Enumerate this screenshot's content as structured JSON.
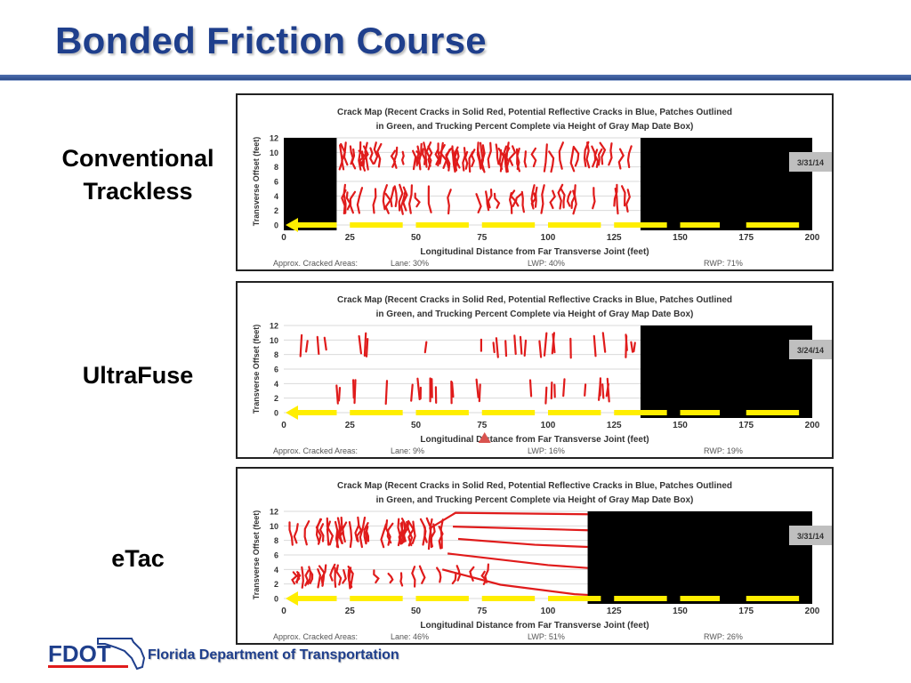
{
  "slide": {
    "title": "Bonded Friction Course",
    "footer_org": "Florida Department of Transportation",
    "logo_text": "FDOT"
  },
  "colors": {
    "title": "#1f3f8c",
    "crack_red": "#e01b1b",
    "black_mask": "#000000",
    "yellow_marker": "#ffee00",
    "date_box": "#bfbfbf"
  },
  "panels": [
    {
      "side_label": [
        "Conventional",
        "Trackless"
      ],
      "chart_title_line1": "Crack Map (Recent Cracks in Solid Red, Potential Reflective Cracks in Blue, Patches Outlined",
      "chart_title_line2": "in Green,  and Trucking Percent Complete via Height of Gray Map Date Box)",
      "date": "3/31/14",
      "approx_label": "Approx. Cracked Areas:",
      "lane_text": "Lane: 30%",
      "lwp_text": "LWP: 40%",
      "rwp_text": "RWP: 71%",
      "show_pointer": false
    },
    {
      "side_label": [
        "UltraFuse"
      ],
      "chart_title_line1": "Crack Map (Recent Cracks in Solid Red, Potential Reflective Cracks in Blue, Patches Outlined",
      "chart_title_line2": "in Green,  and Trucking Percent Complete via Height of Gray Map Date Box)",
      "date": "3/24/14",
      "approx_label": "Approx. Cracked Areas:",
      "lane_text": "Lane: 9%",
      "lwp_text": "LWP: 16%",
      "rwp_text": "RWP: 19%",
      "show_pointer": true
    },
    {
      "side_label": [
        "eTac"
      ],
      "chart_title_line1": "Crack Map (Recent Cracks in Solid Red, Potential Reflective Cracks in Blue, Patches Outlined",
      "chart_title_line2": "in Green,  and Trucking Percent Complete via Height of Gray Map Date Box)",
      "date": "3/31/14",
      "approx_label": "Approx. Cracked Areas:",
      "lane_text": "Lane: 46%",
      "lwp_text": "LWP: 51%",
      "rwp_text": "RWP: 26%",
      "show_pointer": false
    }
  ],
  "chart_data": [
    {
      "type": "crack-map",
      "title": "Crack Map (Recent Cracks in Solid Red, Potential Reflective Cracks in Blue, Patches Outlined in Green,  and Trucking Percent Complete via Height of Gray Map Date Box)",
      "xlabel": "Longitudinal Distance from Far Transverse Joint (feet)",
      "ylabel": "Transverse Offset (feet)",
      "xlim": [
        0,
        200
      ],
      "ylim": [
        0,
        12
      ],
      "x_ticks": [
        0,
        25,
        50,
        75,
        100,
        125,
        150,
        175,
        200
      ],
      "y_ticks": [
        0,
        2,
        4,
        6,
        8,
        10,
        12
      ],
      "black_regions": [
        [
          0,
          20
        ],
        [
          135,
          200
        ]
      ],
      "lane_yellow_segments": [
        [
          5,
          20
        ],
        [
          25,
          45
        ],
        [
          50,
          70
        ],
        [
          75,
          95
        ],
        [
          100,
          120
        ],
        [
          125,
          145
        ],
        [
          150,
          165
        ],
        [
          175,
          195
        ]
      ],
      "date": "3/31/14",
      "cracked_areas": {
        "Lane": 30,
        "LWP": 40,
        "RWP": 71
      }
    },
    {
      "type": "crack-map",
      "title": "Crack Map (Recent Cracks in Solid Red, Potential Reflective Cracks in Blue, Patches Outlined in Green,  and Trucking Percent Complete via Height of Gray Map Date Box)",
      "xlabel": "Longitudinal Distance from Far Transverse Joint (feet)",
      "ylabel": "Transverse Offset (feet)",
      "xlim": [
        0,
        200
      ],
      "ylim": [
        0,
        12
      ],
      "x_ticks": [
        0,
        25,
        50,
        75,
        100,
        125,
        150,
        175,
        200
      ],
      "y_ticks": [
        0,
        2,
        4,
        6,
        8,
        10,
        12
      ],
      "black_regions": [
        [
          135,
          200
        ]
      ],
      "lane_yellow_segments": [
        [
          5,
          20
        ],
        [
          25,
          45
        ],
        [
          50,
          70
        ],
        [
          75,
          95
        ],
        [
          100,
          120
        ],
        [
          125,
          145
        ],
        [
          150,
          165
        ],
        [
          175,
          195
        ]
      ],
      "date": "3/24/14",
      "cracked_areas": {
        "Lane": 9,
        "LWP": 16,
        "RWP": 19
      }
    },
    {
      "type": "crack-map",
      "title": "Crack Map (Recent Cracks in Solid Red, Potential Reflective Cracks in Blue, Patches Outlined in Green,  and Trucking Percent Complete via Height of Gray Map Date Box)",
      "xlabel": "Longitudinal Distance from Far Transverse Joint (feet)",
      "ylabel": "Transverse Offset (feet)",
      "xlim": [
        0,
        200
      ],
      "ylim": [
        0,
        12
      ],
      "x_ticks": [
        0,
        25,
        50,
        75,
        100,
        125,
        150,
        175,
        200
      ],
      "y_ticks": [
        0,
        2,
        4,
        6,
        8,
        10,
        12
      ],
      "black_regions": [
        [
          115,
          200
        ]
      ],
      "lane_yellow_segments": [
        [
          5,
          20
        ],
        [
          25,
          45
        ],
        [
          50,
          70
        ],
        [
          75,
          95
        ],
        [
          100,
          120
        ],
        [
          125,
          145
        ],
        [
          150,
          165
        ],
        [
          175,
          195
        ]
      ],
      "date": "3/31/14",
      "cracked_areas": {
        "Lane": 46,
        "LWP": 51,
        "RWP": 26
      }
    }
  ]
}
